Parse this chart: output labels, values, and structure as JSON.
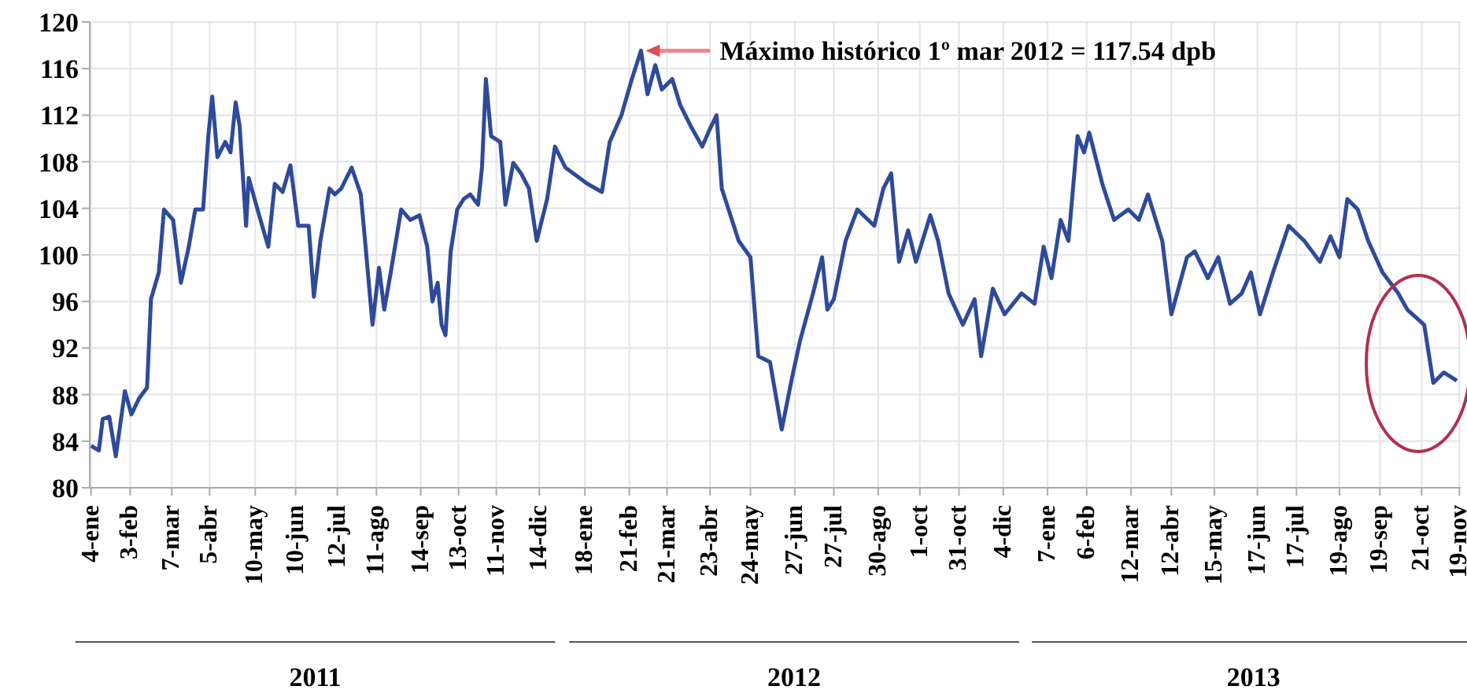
{
  "chart_data": {
    "type": "line",
    "x": [
      "2011-01-04",
      "2011-01-10",
      "2011-01-13",
      "2011-01-18",
      "2011-01-23",
      "2011-01-30",
      "2011-02-04",
      "2011-02-10",
      "2011-02-16",
      "2011-02-19",
      "2011-02-25",
      "2011-03-01",
      "2011-03-08",
      "2011-03-14",
      "2011-03-20",
      "2011-03-25",
      "2011-03-31",
      "2011-04-04",
      "2011-04-07",
      "2011-04-11",
      "2011-04-17",
      "2011-04-21",
      "2011-04-25",
      "2011-04-28",
      "2011-05-03",
      "2011-05-05",
      "2011-05-13",
      "2011-05-20",
      "2011-05-25",
      "2011-05-31",
      "2011-06-06",
      "2011-06-12",
      "2011-06-20",
      "2011-06-24",
      "2011-06-29",
      "2011-07-06",
      "2011-07-10",
      "2011-07-15",
      "2011-07-23",
      "2011-07-30",
      "2011-08-03",
      "2011-08-08",
      "2011-08-13",
      "2011-08-17",
      "2011-08-22",
      "2011-08-30",
      "2011-09-06",
      "2011-09-13",
      "2011-09-19",
      "2011-09-23",
      "2011-09-27",
      "2011-09-30",
      "2011-10-03",
      "2011-10-07",
      "2011-10-12",
      "2011-10-17",
      "2011-10-22",
      "2011-10-28",
      "2011-10-31",
      "2011-11-03",
      "2011-11-07",
      "2011-11-14",
      "2011-11-18",
      "2011-11-24",
      "2011-11-30",
      "2011-12-06",
      "2011-12-12",
      "2011-12-20",
      "2011-12-26",
      "2012-01-03",
      "2012-01-20",
      "2012-01-31",
      "2012-02-06",
      "2012-02-15",
      "2012-02-23",
      "2012-03-01",
      "2012-03-06",
      "2012-03-12",
      "2012-03-17",
      "2012-03-25",
      "2012-03-31",
      "2012-04-08",
      "2012-04-17",
      "2012-04-22",
      "2012-04-28",
      "2012-05-02",
      "2012-05-15",
      "2012-05-24",
      "2012-05-30",
      "2012-06-08",
      "2012-06-17",
      "2012-06-25",
      "2012-07-01",
      "2012-07-11",
      "2012-07-18",
      "2012-07-22",
      "2012-07-27",
      "2012-08-05",
      "2012-08-14",
      "2012-08-27",
      "2012-09-03",
      "2012-09-09",
      "2012-09-15",
      "2012-09-22",
      "2012-09-28",
      "2012-10-09",
      "2012-10-15",
      "2012-10-23",
      "2012-11-03",
      "2012-11-12",
      "2012-11-17",
      "2012-11-26",
      "2012-12-05",
      "2012-12-18",
      "2012-12-28",
      "2013-01-04",
      "2013-01-10",
      "2013-01-17",
      "2013-01-23",
      "2013-01-30",
      "2013-02-04",
      "2013-02-08",
      "2013-02-18",
      "2013-02-27",
      "2013-03-10",
      "2013-03-18",
      "2013-03-25",
      "2013-04-05",
      "2013-04-12",
      "2013-04-24",
      "2013-04-30",
      "2013-05-10",
      "2013-05-18",
      "2013-05-27",
      "2013-06-05",
      "2013-06-12",
      "2013-06-19",
      "2013-06-29",
      "2013-07-11",
      "2013-07-23",
      "2013-08-04",
      "2013-08-12",
      "2013-08-19",
      "2013-08-25",
      "2013-09-02",
      "2013-09-10",
      "2013-09-21",
      "2013-10-03",
      "2013-10-10",
      "2013-10-23",
      "2013-10-30",
      "2013-11-07",
      "2013-11-17"
    ],
    "series": [
      {
        "color": "#2e4a9a",
        "values": [
          83.6,
          83.2,
          85.9,
          86.1,
          82.7,
          88.3,
          86.3,
          87.7,
          88.6,
          96.2,
          98.5,
          103.9,
          103,
          97.6,
          100.7,
          103.9,
          103.9,
          110.2,
          113.6,
          108.4,
          109.7,
          108.8,
          113.1,
          111.1,
          102.5,
          106.6,
          103.4,
          100.7,
          106.1,
          105.4,
          107.7,
          102.5,
          102.5,
          96.4,
          101.2,
          105.7,
          105.2,
          105.7,
          107.5,
          105.2,
          100.3,
          94,
          98.9,
          95.3,
          98.5,
          103.9,
          103,
          103.4,
          100.7,
          96,
          97.6,
          94,
          93.1,
          100.3,
          103.9,
          104.8,
          105.2,
          104.3,
          107.5,
          115.1,
          110.2,
          109.7,
          104.3,
          107.9,
          107,
          105.7,
          101.2,
          104.8,
          109.3,
          107.5,
          106.1,
          105.4,
          109.7,
          112,
          115.1,
          117.54,
          113.8,
          116.3,
          114.2,
          115.1,
          112.9,
          111.1,
          109.3,
          110.6,
          112,
          105.7,
          101.2,
          99.8,
          91.3,
          90.8,
          85,
          89.5,
          92.6,
          96.7,
          99.8,
          95.3,
          96.2,
          101.2,
          103.9,
          102.5,
          105.7,
          107,
          99.4,
          102.1,
          99.4,
          103.4,
          101.2,
          96.7,
          94,
          96.2,
          91.3,
          97.1,
          94.9,
          96.7,
          95.8,
          100.7,
          98,
          103,
          101.2,
          110.2,
          108.8,
          110.5,
          106.1,
          103,
          103.9,
          103,
          105.2,
          101.2,
          94.9,
          99.8,
          100.3,
          98,
          99.8,
          95.8,
          96.7,
          98.5,
          94.9,
          98.5,
          102.5,
          101.2,
          99.4,
          101.6,
          99.8,
          104.8,
          103.9,
          101.2,
          98.5,
          96.7,
          95.3,
          94,
          89,
          89.9,
          89.2
        ]
      }
    ],
    "xlim": [
      "2011-01-03",
      "2013-11-20"
    ],
    "xticks": [
      {
        "value": "2011-01-04",
        "label": "4-ene"
      },
      {
        "value": "2011-02-03",
        "label": "3-feb"
      },
      {
        "value": "2011-03-07",
        "label": "7-mar"
      },
      {
        "value": "2011-04-05",
        "label": "5-abr"
      },
      {
        "value": "2011-05-10",
        "label": "10-may"
      },
      {
        "value": "2011-06-10",
        "label": "10-jun"
      },
      {
        "value": "2011-07-12",
        "label": "12-jul"
      },
      {
        "value": "2011-08-11",
        "label": "11-ago"
      },
      {
        "value": "2011-09-14",
        "label": "14-sep"
      },
      {
        "value": "2011-10-13",
        "label": "13-oct"
      },
      {
        "value": "2011-11-11",
        "label": "11-nov"
      },
      {
        "value": "2011-12-14",
        "label": "14-dic"
      },
      {
        "value": "2012-01-18",
        "label": "18-ene"
      },
      {
        "value": "2012-02-21",
        "label": "21-feb"
      },
      {
        "value": "2012-03-21",
        "label": "21-mar"
      },
      {
        "value": "2012-04-23",
        "label": "23-abr"
      },
      {
        "value": "2012-05-24",
        "label": "24-may"
      },
      {
        "value": "2012-06-27",
        "label": "27-jun"
      },
      {
        "value": "2012-07-27",
        "label": "27-jul"
      },
      {
        "value": "2012-08-30",
        "label": "30-ago"
      },
      {
        "value": "2012-10-01",
        "label": "1-oct"
      },
      {
        "value": "2012-10-31",
        "label": "31-oct"
      },
      {
        "value": "2012-12-04",
        "label": "4-dic"
      },
      {
        "value": "2013-01-07",
        "label": "7-ene"
      },
      {
        "value": "2013-02-06",
        "label": "6-feb"
      },
      {
        "value": "2013-03-12",
        "label": "12-mar"
      },
      {
        "value": "2013-04-12",
        "label": "12-abr"
      },
      {
        "value": "2013-05-15",
        "label": "15-may"
      },
      {
        "value": "2013-06-17",
        "label": "17-jun"
      },
      {
        "value": "2013-07-17",
        "label": "17-jul"
      },
      {
        "value": "2013-08-19",
        "label": "19-ago"
      },
      {
        "value": "2013-09-19",
        "label": "19-sep"
      },
      {
        "value": "2013-10-21",
        "label": "21-oct"
      },
      {
        "value": "2013-11-19",
        "label": "19-nov"
      }
    ],
    "ylim": [
      80,
      120
    ],
    "yticks": [
      80,
      84,
      88,
      92,
      96,
      100,
      104,
      108,
      112,
      116,
      120
    ],
    "grid": true,
    "legend": false,
    "annotations": [
      {
        "text": "Máximo histórico 1º mar 2012 = 117.54 dpb",
        "x": "2012-03-01",
        "y": 117.54
      },
      "2011",
      "2012",
      "2013"
    ]
  }
}
